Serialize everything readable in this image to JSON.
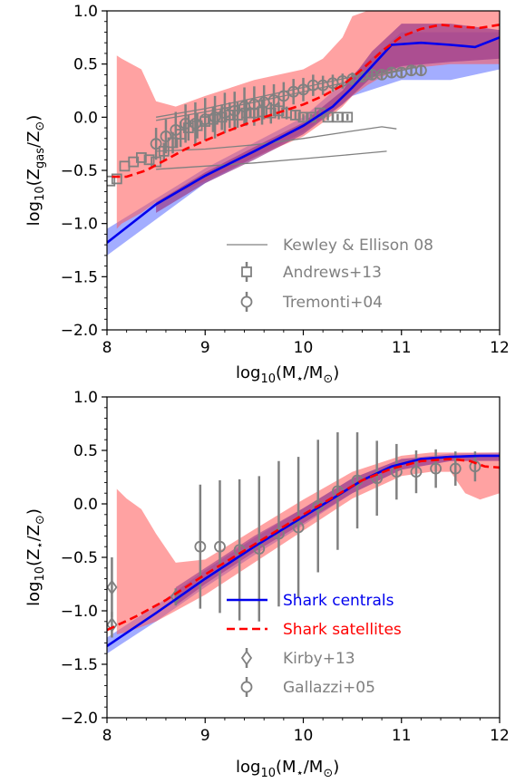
{
  "chart_data": [
    {
      "type": "line",
      "xlim": [
        8,
        12
      ],
      "ylim": [
        -2.0,
        1.0
      ],
      "xticks": [
        8,
        9,
        10,
        11,
        12
      ],
      "yticks": [
        -2.0,
        -1.5,
        -1.0,
        -0.5,
        0.0,
        0.5,
        1.0
      ],
      "xtick_labels": [
        "8",
        "9",
        "10",
        "11",
        "12"
      ],
      "ytick_labels": [
        "−2.0",
        "−1.5",
        "−1.0",
        "−0.5",
        "0.0",
        "0.5",
        "1.0"
      ],
      "xlabel": {
        "base": "log",
        "sub": "10",
        "rest": "(M",
        "star": "⋆",
        "tail": "/M",
        "sun": "⊙",
        "close": ")"
      },
      "ylabel": {
        "base": "log",
        "sub": "10",
        "rest": "(Z",
        "sub2": "gas",
        "tail": "/Z",
        "sun": "⊙",
        "close": ")"
      },
      "legend_position": "lower-right",
      "series": [
        {
          "role": "central-median",
          "color": "#0000ee",
          "style": "solid",
          "x": [
            8.0,
            8.5,
            9.0,
            9.5,
            10.0,
            10.3,
            10.5,
            10.7,
            10.9,
            11.2,
            11.5,
            11.75,
            12.0
          ],
          "y": [
            -1.18,
            -0.82,
            -0.55,
            -0.32,
            -0.08,
            0.1,
            0.28,
            0.48,
            0.68,
            0.7,
            0.68,
            0.66,
            0.75
          ]
        },
        {
          "role": "satellite-median",
          "color": "#ff0000",
          "style": "dashed",
          "x": [
            8.05,
            8.2,
            8.4,
            8.6,
            8.8,
            9.0,
            9.2,
            9.4,
            9.6,
            9.8,
            10.0,
            10.2,
            10.4,
            10.6,
            10.8,
            11.0,
            11.2,
            11.4,
            11.6,
            11.8,
            12.0
          ],
          "y": [
            -0.56,
            -0.56,
            -0.5,
            -0.4,
            -0.3,
            -0.22,
            -0.14,
            -0.07,
            0.0,
            0.06,
            0.12,
            0.2,
            0.3,
            0.45,
            0.62,
            0.76,
            0.83,
            0.87,
            0.85,
            0.84,
            0.87
          ]
        }
      ],
      "bands": [
        {
          "role": "central-range",
          "color": "#6677ff",
          "opacity": 0.6,
          "x": [
            8.0,
            9.0,
            10.0,
            10.5,
            11.0,
            11.5,
            12.0
          ],
          "upper": [
            -1.05,
            -0.48,
            0.0,
            0.4,
            0.8,
            0.8,
            0.8
          ],
          "lower": [
            -1.3,
            -0.62,
            -0.14,
            0.2,
            0.35,
            0.35,
            0.45
          ]
        },
        {
          "role": "satellite-range",
          "color": "#ff5555",
          "opacity": 0.55,
          "x": [
            8.1,
            8.15,
            8.35,
            8.5,
            8.7,
            9.0,
            9.5,
            10.0,
            10.2,
            10.4,
            10.5,
            10.65,
            10.8,
            11.0,
            11.3,
            11.5,
            11.7,
            11.9,
            12.0
          ],
          "upper": [
            0.58,
            0.55,
            0.45,
            0.15,
            0.1,
            0.2,
            0.35,
            0.45,
            0.55,
            0.75,
            0.95,
            1.0,
            1.0,
            1.0,
            1.0,
            1.0,
            1.0,
            1.0,
            1.0
          ],
          "lower": [
            -1.05,
            -1.0,
            -0.9,
            -0.8,
            -0.72,
            -0.6,
            -0.38,
            -0.18,
            -0.05,
            0.1,
            0.2,
            0.3,
            0.38,
            0.45,
            0.48,
            0.5,
            0.5,
            0.5,
            0.5
          ]
        },
        {
          "role": "overlap",
          "color": "#9a3a8a",
          "opacity": 0.7,
          "x": [
            8.5,
            9.0,
            9.5,
            10.0,
            10.4,
            10.7,
            11.0,
            11.5,
            12.0
          ],
          "upper": [
            -0.8,
            -0.52,
            -0.28,
            -0.05,
            0.25,
            0.62,
            0.88,
            0.88,
            0.82
          ],
          "lower": [
            -0.9,
            -0.62,
            -0.4,
            -0.16,
            0.12,
            0.38,
            0.48,
            0.52,
            0.55
          ]
        }
      ],
      "observations": [
        {
          "name": "Kewley & Ellison 08",
          "marker": "line",
          "color": "#808080",
          "curves": [
            {
              "x": [
                8.5,
                9.0,
                9.5,
                10.0,
                10.5,
                10.8,
                11.0,
                11.15
              ],
              "y": [
                -0.03,
                0.05,
                0.14,
                0.24,
                0.34,
                0.4,
                0.44,
                0.48
              ]
            },
            {
              "x": [
                8.5,
                9.0,
                9.5,
                10.0,
                10.5,
                11.0,
                11.15
              ],
              "y": [
                0.0,
                0.08,
                0.18,
                0.28,
                0.38,
                0.44,
                0.47
              ]
            },
            {
              "x": [
                8.5,
                9.0,
                9.5,
                10.0,
                10.5,
                10.8,
                10.95
              ],
              "y": [
                -0.32,
                -0.3,
                -0.26,
                -0.2,
                -0.13,
                -0.09,
                -0.11
              ]
            },
            {
              "x": [
                8.5,
                9.0,
                9.5,
                10.0,
                10.5,
                10.85
              ],
              "y": [
                -0.49,
                -0.46,
                -0.43,
                -0.39,
                -0.35,
                -0.32
              ]
            }
          ]
        },
        {
          "name": "Andrews+13",
          "marker": "square",
          "color": "#808080",
          "x": [
            8.03,
            8.1,
            8.18,
            8.27,
            8.35,
            8.43,
            8.5,
            8.58,
            8.67,
            8.75,
            8.83,
            8.92,
            9.0,
            9.08,
            9.17,
            9.25,
            9.33,
            9.42,
            9.5,
            9.58,
            9.67,
            9.75,
            9.83,
            9.92,
            10.0,
            10.08,
            10.17,
            10.25,
            10.35,
            10.45
          ],
          "y": [
            -0.6,
            -0.58,
            -0.46,
            -0.42,
            -0.38,
            -0.4,
            -0.42,
            -0.32,
            -0.24,
            -0.16,
            -0.1,
            -0.08,
            -0.04,
            -0.02,
            0.0,
            0.02,
            0.02,
            0.04,
            0.04,
            0.05,
            0.04,
            0.06,
            0.04,
            0.02,
            0.0,
            0.0,
            0.04,
            0.0,
            0.0,
            0.0
          ],
          "yerr": [
            0.0,
            0.0,
            0.0,
            0.0,
            0.0,
            0.0,
            0.0,
            0.08,
            0.1,
            0.12,
            0.12,
            0.12,
            0.12,
            0.12,
            0.12,
            0.12,
            0.12,
            0.12,
            0.12,
            0.12,
            0.1,
            0.08,
            0.06,
            0.04,
            0.03,
            0.03,
            0.03,
            0.03,
            0.03,
            0.03
          ]
        },
        {
          "name": "Tremonti+04",
          "marker": "circle",
          "color": "#808080",
          "x": [
            8.5,
            8.6,
            8.7,
            8.8,
            8.9,
            9.0,
            9.1,
            9.2,
            9.3,
            9.4,
            9.5,
            9.6,
            9.7,
            9.8,
            9.9,
            10.0,
            10.1,
            10.2,
            10.3,
            10.4,
            10.5,
            10.6,
            10.7,
            10.8,
            10.9,
            11.0,
            11.1,
            11.2
          ],
          "y": [
            -0.25,
            -0.18,
            -0.12,
            -0.06,
            -0.06,
            -0.02,
            0.0,
            0.04,
            0.06,
            0.1,
            0.12,
            0.14,
            0.16,
            0.2,
            0.24,
            0.26,
            0.3,
            0.3,
            0.32,
            0.34,
            0.36,
            0.38,
            0.4,
            0.4,
            0.42,
            0.42,
            0.44,
            0.44
          ],
          "yerr": [
            0.15,
            0.16,
            0.17,
            0.18,
            0.2,
            0.2,
            0.2,
            0.19,
            0.18,
            0.18,
            0.17,
            0.16,
            0.15,
            0.13,
            0.12,
            0.11,
            0.1,
            0.09,
            0.08,
            0.07,
            0.06,
            0.05,
            0.05,
            0.05,
            0.04,
            0.04,
            0.04,
            0.04
          ]
        }
      ]
    },
    {
      "type": "line",
      "xlim": [
        8,
        12
      ],
      "ylim": [
        -2.0,
        1.0
      ],
      "xticks": [
        8,
        9,
        10,
        11,
        12
      ],
      "yticks": [
        -2.0,
        -1.5,
        -1.0,
        -0.5,
        0.0,
        0.5,
        1.0
      ],
      "xtick_labels": [
        "8",
        "9",
        "10",
        "11",
        "12"
      ],
      "ytick_labels": [
        "−2.0",
        "−1.5",
        "−1.0",
        "−0.5",
        "0.0",
        "0.5",
        "1.0"
      ],
      "xlabel": {
        "base": "log",
        "sub": "10",
        "rest": "(M",
        "star": "⋆",
        "tail": "/M",
        "sun": "⊙",
        "close": ")"
      },
      "ylabel": {
        "base": "log",
        "sub": "10",
        "rest": "(Z",
        "star": "⋆",
        "tail": "/Z",
        "sun": "⊙",
        "close": ")"
      },
      "legend_position": "lower-right",
      "series": [
        {
          "name": "Shark centrals",
          "color": "#0000ee",
          "style": "solid",
          "x": [
            8.0,
            8.5,
            9.0,
            9.5,
            10.0,
            10.3,
            10.6,
            10.9,
            11.2,
            11.5,
            11.8,
            12.0
          ],
          "y": [
            -1.33,
            -1.02,
            -0.7,
            -0.4,
            -0.12,
            0.05,
            0.22,
            0.35,
            0.42,
            0.44,
            0.45,
            0.45
          ]
        },
        {
          "name": "Shark satellites",
          "color": "#ff0000",
          "style": "dashed",
          "x": [
            8.0,
            8.3,
            8.6,
            9.0,
            9.5,
            10.0,
            10.3,
            10.6,
            10.9,
            11.2,
            11.5,
            11.7,
            11.85,
            12.0
          ],
          "y": [
            -1.18,
            -1.05,
            -0.9,
            -0.66,
            -0.38,
            -0.1,
            0.06,
            0.22,
            0.33,
            0.4,
            0.42,
            0.4,
            0.35,
            0.34
          ]
        }
      ],
      "bands": [
        {
          "role": "central-range",
          "color": "#6677ff",
          "opacity": 0.6,
          "x": [
            8.0,
            8.5,
            9.0,
            9.5,
            10.0,
            10.5,
            11.0,
            11.5,
            12.0
          ],
          "upper": [
            -1.25,
            -0.95,
            -0.62,
            -0.32,
            -0.04,
            0.24,
            0.42,
            0.47,
            0.48
          ],
          "lower": [
            -1.4,
            -1.1,
            -0.78,
            -0.48,
            -0.2,
            0.1,
            0.32,
            0.4,
            0.41
          ]
        },
        {
          "role": "satellite-range",
          "color": "#ff5555",
          "opacity": 0.55,
          "x": [
            8.1,
            8.2,
            8.35,
            8.5,
            8.7,
            9.0,
            9.5,
            10.0,
            10.5,
            11.0,
            11.3,
            11.5,
            11.65,
            11.8,
            12.0
          ],
          "upper": [
            0.14,
            0.05,
            -0.05,
            -0.28,
            -0.55,
            -0.52,
            -0.24,
            0.04,
            0.3,
            0.45,
            0.48,
            0.48,
            0.48,
            0.48,
            0.48
          ],
          "lower": [
            -1.22,
            -1.2,
            -1.15,
            -1.1,
            -1.0,
            -0.85,
            -0.55,
            -0.25,
            0.05,
            0.26,
            0.3,
            0.3,
            0.1,
            0.04,
            0.1
          ]
        },
        {
          "role": "overlap",
          "color": "#9a3a8a",
          "opacity": 0.6,
          "x": [
            8.7,
            9.0,
            9.5,
            10.0,
            10.5,
            11.0,
            11.5,
            12.0
          ],
          "upper": [
            -0.78,
            -0.6,
            -0.3,
            -0.04,
            0.24,
            0.42,
            0.45,
            0.44
          ],
          "lower": [
            -0.95,
            -0.75,
            -0.45,
            -0.18,
            0.1,
            0.32,
            0.4,
            0.4
          ]
        }
      ],
      "observations": [
        {
          "name": "Kirby+13",
          "marker": "diamond",
          "color": "#808080",
          "x": [
            8.05,
            8.05,
            8.7
          ],
          "y": [
            -0.78,
            -1.13,
            -0.87
          ],
          "yerr": [
            0.28,
            0.12,
            0.08
          ]
        },
        {
          "name": "Gallazzi+05",
          "marker": "circle",
          "color": "#808080",
          "x": [
            8.95,
            9.15,
            9.35,
            9.55,
            9.75,
            9.95,
            10.15,
            10.35,
            10.55,
            10.75,
            10.95,
            11.15,
            11.35,
            11.55,
            11.75
          ],
          "y": [
            -0.4,
            -0.4,
            -0.43,
            -0.42,
            -0.28,
            -0.22,
            -0.02,
            0.12,
            0.22,
            0.24,
            0.3,
            0.3,
            0.33,
            0.33,
            0.35
          ],
          "yerr": [
            0.58,
            0.62,
            0.66,
            0.68,
            0.68,
            0.66,
            0.62,
            0.55,
            0.45,
            0.35,
            0.26,
            0.2,
            0.18,
            0.16,
            0.14
          ]
        }
      ]
    }
  ]
}
